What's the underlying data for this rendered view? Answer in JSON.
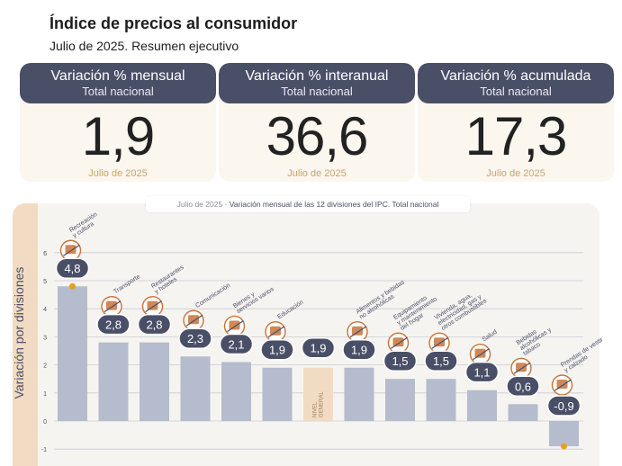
{
  "header": {
    "title": "Índice de precios al consumidor",
    "subtitle": "Julio de 2025. Resumen ejecutivo"
  },
  "cards": [
    {
      "title": "Variación % mensual",
      "sub": "Total nacional",
      "value": "1,9",
      "date": "Julio de 2025"
    },
    {
      "title": "Variación % interanual",
      "sub": "Total nacional",
      "value": "36,6",
      "date": "Julio de 2025"
    },
    {
      "title": "Variación % acumulada",
      "sub": "Total nacional",
      "value": "17,3",
      "date": "Julio de 2025"
    }
  ],
  "chart_caption": {
    "date": "Julio de 2025",
    "sep": " - ",
    "text": "Variación mensual de las 12 divisiones del IPC. Total nacional"
  },
  "colors": {
    "bar": "#b5bccd",
    "general_bar": "#f1dcc3",
    "bubble": "#4a4f68",
    "accent": "#e8a020",
    "icon": "#c8733a"
  },
  "chart_data": {
    "type": "bar",
    "ylabel": "Variación por divisiones",
    "ylim": [
      -1,
      6
    ],
    "yticks": [
      -1,
      0,
      1,
      2,
      3,
      4,
      5,
      6
    ],
    "grid": true,
    "categories": [
      "Recreación y cultura",
      "Transporte",
      "Restaurantes y hoteles",
      "Comunicación",
      "Bienes y servicios varios",
      "Educación",
      "NIVEL GENERAL",
      "Alimentos y bebidas no alcohólicas",
      "Equipamiento y mantenimiento del hogar",
      "Vivienda, agua, electricidad, gas y otros combustibles",
      "Salud",
      "Bebidas alcohólicas y tabaco",
      "Prendas de vestir y calzado"
    ],
    "values": [
      4.8,
      2.8,
      2.8,
      2.3,
      2.1,
      1.9,
      1.9,
      1.9,
      1.5,
      1.5,
      1.1,
      0.6,
      -0.9
    ],
    "value_labels": [
      "4,8",
      "2,8",
      "2,8",
      "2,3",
      "2,1",
      "1,9",
      "1,9",
      "1,9",
      "1,5",
      "1,5",
      "1,1",
      "0,6",
      "-0,9"
    ],
    "category_labels": [
      [
        "Recreación",
        "y cultura"
      ],
      [
        "Transporte"
      ],
      [
        "Restaurantes",
        "y hoteles"
      ],
      [
        "Comunicación"
      ],
      [
        "Bienes y",
        "servicios varios"
      ],
      [
        "Educación"
      ],
      [
        "NIVEL",
        "GENERAL"
      ],
      [
        "Alimentos y bebidas",
        "no alcohólicas"
      ],
      [
        "Equipamiento",
        "y mantenimiento",
        "del hogar"
      ],
      [
        "Vivienda, agua,",
        "electricidad, gas y",
        "otros combustibles"
      ],
      [
        "Salud"
      ],
      [
        "Bebidas",
        "alcohólicas y",
        "tabaco"
      ],
      [
        "Prendas de vestir",
        "y calzado"
      ]
    ],
    "icons": [
      "theater-masks-icon",
      "bus-icon",
      "cutlery-icon",
      "phone-icon",
      "scissors-icon",
      "book-icon",
      "",
      "food-basket-icon",
      "air-conditioner-icon",
      "lightbulb-icon",
      "medical-cross-icon",
      "bottle-icon",
      "tshirt-icon"
    ]
  }
}
